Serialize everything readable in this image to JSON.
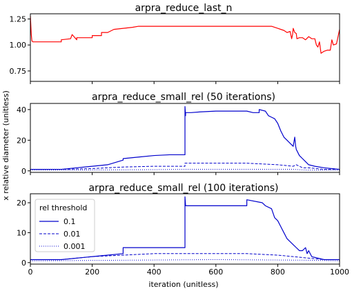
{
  "figure": {
    "ylabel": "x relative diameter (unitless)",
    "xlabel": "iteration (unitless)"
  },
  "chart_data": [
    {
      "type": "line",
      "title": "arpra_reduce_last_n",
      "xlim": [
        0,
        1000
      ],
      "ylim": [
        0.65,
        1.3
      ],
      "xticks": [
        0,
        200,
        400,
        600,
        800,
        1000
      ],
      "xtick_labels": [],
      "yticks": [
        0.75,
        1.0,
        1.25
      ],
      "ytick_labels": [
        "0.75",
        "1.00",
        "1.25"
      ],
      "series": [
        {
          "color": "#ff0000",
          "dash": "solid",
          "x": [
            0,
            3,
            5,
            8,
            100,
            100,
            130,
            135,
            150,
            150,
            200,
            200,
            230,
            230,
            250,
            270,
            300,
            330,
            350,
            400,
            500,
            600,
            700,
            750,
            780,
            790,
            800,
            810,
            820,
            830,
            840,
            845,
            848,
            850,
            855,
            860,
            862,
            870,
            880,
            890,
            900,
            910,
            920,
            925,
            930,
            935,
            940,
            950,
            960,
            970,
            975,
            980,
            990,
            1000
          ],
          "y": [
            1.28,
            1.1,
            1.04,
            1.03,
            1.03,
            1.05,
            1.06,
            1.1,
            1.05,
            1.07,
            1.07,
            1.09,
            1.09,
            1.12,
            1.12,
            1.15,
            1.16,
            1.17,
            1.18,
            1.18,
            1.18,
            1.18,
            1.18,
            1.18,
            1.18,
            1.17,
            1.16,
            1.15,
            1.14,
            1.12,
            1.13,
            1.06,
            1.1,
            1.16,
            1.12,
            1.11,
            1.06,
            1.07,
            1.07,
            1.05,
            1.08,
            1.06,
            1.06,
            1.0,
            0.98,
            1.03,
            0.92,
            0.94,
            0.95,
            0.95,
            1.05,
            1.0,
            1.01,
            1.15
          ]
        }
      ]
    },
    {
      "type": "line",
      "title": "arpra_reduce_small_rel (50 iterations)",
      "xlim": [
        0,
        1000
      ],
      "ylim": [
        -1,
        44
      ],
      "xticks": [
        0,
        200,
        400,
        600,
        800,
        1000
      ],
      "xtick_labels": [],
      "yticks": [
        0,
        20,
        40
      ],
      "ytick_labels": [
        "0",
        "20",
        "40"
      ],
      "series": [
        {
          "color": "#0000cc",
          "dash": "solid",
          "x": [
            0,
            100,
            150,
            200,
            250,
            300,
            300,
            350,
            400,
            450,
            500,
            500,
            502,
            502,
            520,
            550,
            600,
            700,
            720,
            740,
            740,
            760,
            770,
            780,
            790,
            800,
            810,
            820,
            830,
            840,
            850,
            855,
            858,
            860,
            870,
            880,
            890,
            900,
            920,
            950,
            1000
          ],
          "y": [
            1,
            1,
            2,
            3,
            4,
            7,
            8,
            9,
            10,
            10.5,
            10.5,
            42,
            36,
            38,
            38,
            38.5,
            39,
            39,
            38,
            38,
            40,
            39,
            36,
            35,
            34,
            31,
            26,
            22,
            20,
            18,
            16,
            22,
            16,
            14,
            10,
            8,
            6,
            4,
            3,
            2,
            1
          ]
        },
        {
          "color": "#0000cc",
          "dash": "dashed",
          "x": [
            0,
            100,
            200,
            300,
            400,
            500,
            500,
            600,
            700,
            800,
            850,
            860,
            880,
            900,
            950,
            1000
          ],
          "y": [
            1,
            1,
            1.5,
            2.5,
            3,
            3,
            5,
            5,
            5,
            4,
            3,
            4,
            2,
            2,
            1,
            1
          ]
        },
        {
          "color": "#0000cc",
          "dash": "dotted",
          "x": [
            0,
            200,
            400,
            500,
            700,
            850,
            900,
            1000
          ],
          "y": [
            0.5,
            0.6,
            0.8,
            1,
            1,
            1,
            0.5,
            0.5
          ]
        }
      ]
    },
    {
      "type": "line",
      "title": "arpra_reduce_small_rel (100 iterations)",
      "xlim": [
        0,
        1000
      ],
      "ylim": [
        -0.5,
        23
      ],
      "xticks": [
        0,
        200,
        400,
        600,
        800,
        1000
      ],
      "xtick_labels": [
        "0",
        "200",
        "400",
        "600",
        "800",
        "1000"
      ],
      "yticks": [
        0,
        10,
        20
      ],
      "ytick_labels": [
        "0",
        "10",
        "20"
      ],
      "legend": {
        "title": "rel threshold",
        "position": "upper-left",
        "entries": [
          "0.1",
          "0.01",
          "0.001"
        ]
      },
      "series": [
        {
          "name": "0.1",
          "color": "#0000cc",
          "dash": "solid",
          "x": [
            0,
            100,
            200,
            300,
            300,
            400,
            500,
            500,
            502,
            502,
            600,
            700,
            700,
            750,
            760,
            780,
            790,
            800,
            810,
            820,
            830,
            840,
            850,
            860,
            870,
            880,
            890,
            895,
            900,
            910,
            950,
            1000
          ],
          "y": [
            1,
            1,
            2,
            3,
            5,
            5,
            5,
            22,
            19,
            19,
            19,
            19,
            21,
            20,
            19,
            18,
            15,
            14,
            12,
            10,
            8,
            7,
            6,
            5,
            4,
            4,
            5,
            3,
            4,
            2,
            1,
            1
          ]
        },
        {
          "name": "0.01",
          "color": "#0000cc",
          "dash": "dashed",
          "x": [
            0,
            100,
            200,
            300,
            400,
            500,
            600,
            700,
            800,
            850,
            900,
            950,
            1000
          ],
          "y": [
            1,
            1,
            2,
            2.5,
            3,
            3,
            3,
            3,
            2.5,
            2,
            1.5,
            1,
            1
          ]
        },
        {
          "name": "0.001",
          "color": "#0000cc",
          "dash": "dotted",
          "x": [
            0,
            300,
            600,
            900,
            1000
          ],
          "y": [
            0.6,
            0.8,
            1,
            0.8,
            0.6
          ]
        }
      ]
    }
  ]
}
